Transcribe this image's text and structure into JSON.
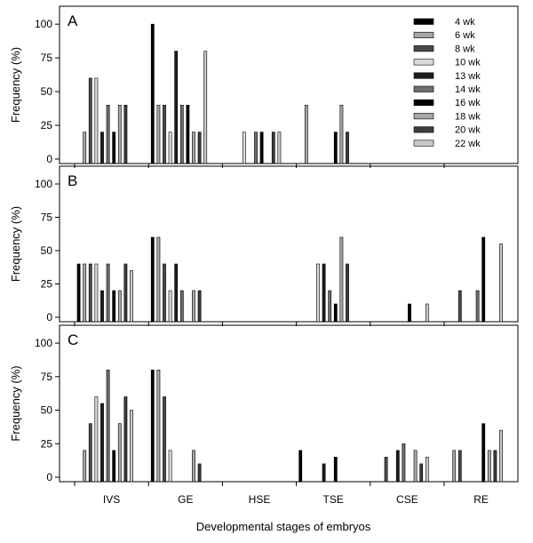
{
  "chart_data": {
    "type": "bar",
    "xlabel": "Developmental stages of embryos",
    "ylabel": "Frequency (%)",
    "ylim": [
      0,
      110
    ],
    "yticks": [
      0,
      25,
      50,
      75,
      100
    ],
    "categories": [
      "IVS",
      "GE",
      "HSE",
      "TSE",
      "CSE",
      "RE"
    ],
    "legend": {
      "placement": "top-right of panel A",
      "series": [
        "4 wk",
        "6 wk",
        "8 wk",
        "10 wk",
        "13 wk",
        "14 wk",
        "16 wk",
        "18 wk",
        "20 wk",
        "22 wk"
      ],
      "colors": [
        "#000000",
        "#a6a6a6",
        "#4a4a4a",
        "#d9d9d9",
        "#1c1c1c",
        "#6e6e6e",
        "#000000",
        "#a6a6a6",
        "#3c3c3c",
        "#c8c8c8"
      ]
    },
    "panels": [
      {
        "label": "A",
        "values": {
          "IVS": [
            0,
            20,
            60,
            60,
            20,
            40,
            20,
            40,
            40,
            0
          ],
          "GE": [
            100,
            40,
            40,
            20,
            80,
            40,
            40,
            20,
            20,
            80
          ],
          "HSE": [
            0,
            0,
            0,
            20,
            0,
            20,
            20,
            0,
            20,
            20
          ],
          "TSE": [
            0,
            40,
            0,
            0,
            0,
            0,
            20,
            40,
            20,
            0
          ],
          "CSE": [
            0,
            0,
            0,
            0,
            0,
            0,
            0,
            0,
            0,
            0
          ],
          "RE": [
            0,
            0,
            0,
            0,
            0,
            0,
            0,
            0,
            0,
            0
          ]
        }
      },
      {
        "label": "B",
        "values": {
          "IVS": [
            40,
            40,
            40,
            40,
            20,
            40,
            20,
            20,
            40,
            35
          ],
          "GE": [
            60,
            60,
            40,
            20,
            40,
            20,
            0,
            20,
            20,
            0
          ],
          "HSE": [
            0,
            0,
            0,
            0,
            0,
            0,
            0,
            0,
            0,
            0
          ],
          "TSE": [
            0,
            0,
            0,
            40,
            40,
            20,
            10,
            60,
            40,
            0
          ],
          "CSE": [
            0,
            0,
            0,
            0,
            0,
            0,
            10,
            0,
            0,
            10
          ],
          "RE": [
            0,
            0,
            20,
            0,
            0,
            20,
            60,
            0,
            0,
            55
          ]
        }
      },
      {
        "label": "C",
        "values": {
          "IVS": [
            0,
            20,
            40,
            60,
            55,
            80,
            20,
            40,
            60,
            50
          ],
          "GE": [
            80,
            80,
            60,
            20,
            0,
            0,
            0,
            20,
            10,
            0
          ],
          "HSE": [
            0,
            0,
            0,
            0,
            0,
            0,
            0,
            0,
            0,
            0
          ],
          "TSE": [
            20,
            0,
            0,
            0,
            10,
            0,
            15,
            0,
            0,
            0
          ],
          "CSE": [
            0,
            0,
            15,
            0,
            20,
            25,
            0,
            20,
            10,
            15
          ],
          "RE": [
            0,
            20,
            20,
            0,
            0,
            0,
            40,
            20,
            20,
            35
          ]
        }
      }
    ]
  }
}
